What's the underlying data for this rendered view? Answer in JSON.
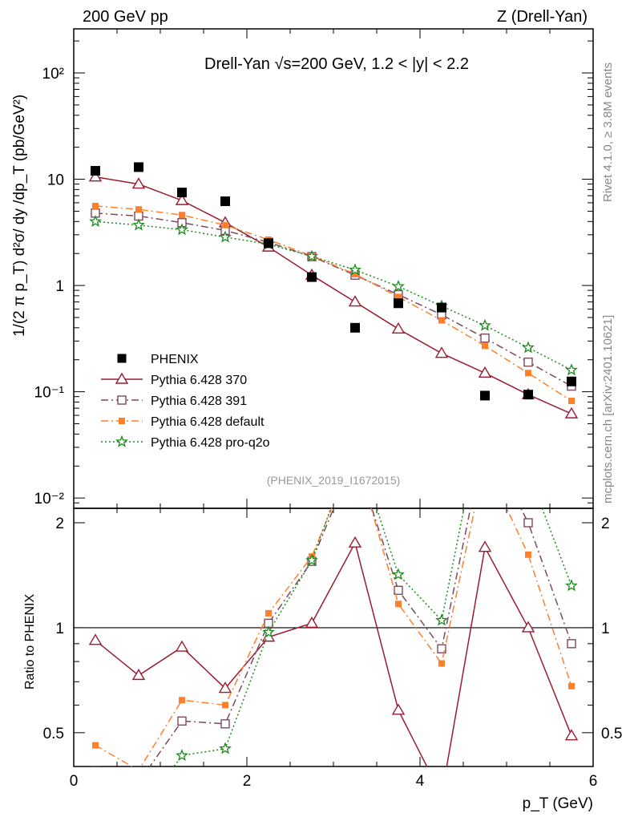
{
  "header": {
    "left": "200 GeV pp",
    "right": "Z (Drell-Yan)",
    "side_top": "Rivet 4.1.0, ≥ 3.8M events",
    "side_bottom": "mcplots.cern.ch [arXiv:2401.10621]"
  },
  "chart_data": {
    "type": "scatter",
    "title": "Drell-Yan √s=200 GeV,  1.2 < |y| < 2.2",
    "annotation": "(PHENIX_2019_I1672015)",
    "xlabel": "p_T (GeV)",
    "ylabel": "1/(2 π p_T) d²σ/ dy /dp_T (pb/GeV²)",
    "ratio_ylabel": "Ratio to PHENIX",
    "xlim": [
      0,
      6
    ],
    "ylim": [
      0.008,
      260
    ],
    "yscale": "log",
    "ratio_ylim": [
      0.4,
      2.2
    ],
    "x_ticks": [
      "0",
      "2",
      "4",
      "6"
    ],
    "y_ticks": [
      "10⁻²",
      "10⁻¹",
      "1",
      "10",
      "10²"
    ],
    "ratio_ticks": [
      "0.5",
      "1",
      "2"
    ],
    "x": [
      0.25,
      0.75,
      1.25,
      1.75,
      2.25,
      2.75,
      3.25,
      3.75,
      4.25,
      4.75,
      5.25,
      5.75
    ],
    "series": [
      {
        "name": "PHENIX",
        "color": "#000000",
        "marker": "square",
        "line": "none",
        "values": [
          12,
          13,
          7.5,
          6.2,
          2.5,
          1.2,
          0.4,
          0.68,
          0.62,
          0.092,
          0.094,
          0.125
        ]
      },
      {
        "name": "Pythia 6.428 370",
        "color": "#9b1b30",
        "marker": "triangle-open",
        "line": "solid",
        "values": [
          10.5,
          9.0,
          6.3,
          3.9,
          2.3,
          1.25,
          0.7,
          0.39,
          0.23,
          0.15,
          0.094,
          0.062
        ]
      },
      {
        "name": "Pythia 6.428 391",
        "color": "#7a4a60",
        "marker": "square-open",
        "line": "dashdot",
        "values": [
          4.8,
          4.5,
          3.9,
          3.3,
          2.55,
          1.87,
          1.25,
          0.82,
          0.53,
          0.32,
          0.19,
          0.113
        ]
      },
      {
        "name": "Pythia 6.428 default",
        "color": "#ff7f2a",
        "marker": "square",
        "line": "dashdot",
        "values": [
          5.6,
          5.2,
          4.6,
          3.7,
          2.7,
          1.9,
          1.28,
          0.78,
          0.47,
          0.27,
          0.15,
          0.082
        ]
      },
      {
        "name": "Pythia 6.428 pro-q2o",
        "color": "#1a8a1a",
        "marker": "star",
        "line": "dotted",
        "values": [
          4.0,
          3.7,
          3.35,
          2.85,
          2.45,
          1.88,
          1.4,
          0.98,
          0.64,
          0.42,
          0.26,
          0.16
        ]
      }
    ],
    "ratios": [
      {
        "name": "Pythia 6.428 370",
        "values": [
          0.92,
          0.73,
          0.88,
          0.67,
          0.94,
          1.03,
          1.75,
          0.58,
          0.33,
          1.7,
          1.0,
          0.49
        ]
      },
      {
        "name": "Pythia 6.428 391",
        "values": [
          0.39,
          0.36,
          0.54,
          0.53,
          1.03,
          1.55,
          3.1,
          1.28,
          0.87,
          3.5,
          2.0,
          0.9
        ]
      },
      {
        "name": "Pythia 6.428 default",
        "values": [
          0.46,
          0.39,
          0.62,
          0.6,
          1.1,
          1.6,
          3.2,
          1.17,
          0.79,
          3.0,
          1.62,
          0.68
        ]
      },
      {
        "name": "Pythia 6.428 pro-q2o",
        "values": [
          0.3,
          0.29,
          0.43,
          0.45,
          0.97,
          1.56,
          3.4,
          1.42,
          1.05,
          4.4,
          2.8,
          1.32
        ]
      }
    ]
  }
}
